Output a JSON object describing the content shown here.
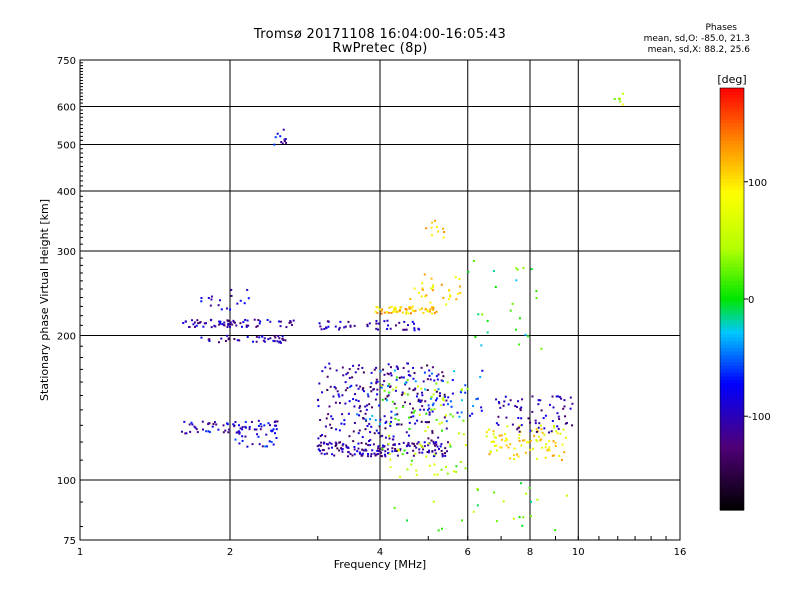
{
  "header": {
    "title_line1": "Tromsø 20171108 16:04:00-16:05:43",
    "title_line2": "RwPretec (8p)",
    "phase_heading": "Phases",
    "phase_o": "mean, sd,O: -85.0, 21.3",
    "phase_x": "mean, sd,X:  88.2, 25.6"
  },
  "chart_data": {
    "type": "scatter",
    "title": "Tromsø 20171108 16:04:00-16:05:43",
    "subtitle": "RwPretec (8p)",
    "xlabel": "Frequency [MHz]",
    "ylabel": "Stationary phase Virtual Height [km]",
    "x_scale": "log",
    "y_scale": "log",
    "xlim": [
      1,
      16
    ],
    "ylim": [
      75,
      750
    ],
    "x_ticks": [
      1,
      2,
      4,
      6,
      8,
      10,
      16
    ],
    "y_ticks": [
      75,
      100,
      200,
      300,
      400,
      500,
      600,
      750
    ],
    "grid": true,
    "colorbar": {
      "label": "[deg]",
      "range": [
        -180,
        180
      ],
      "ticks": [
        -100,
        0,
        100
      ],
      "colormap": "rainbow"
    },
    "clusters": [
      {
        "name": "O-F1-low",
        "x": [
          1.6,
          2.55
        ],
        "y": [
          125,
          133
        ],
        "n": 70,
        "phase": -95
      },
      {
        "name": "O-F1-low2",
        "x": [
          2.05,
          2.5
        ],
        "y": [
          117,
          126
        ],
        "n": 20,
        "phase": -80
      },
      {
        "name": "O-F2-low",
        "x": [
          1.6,
          2.7
        ],
        "y": [
          208,
          216
        ],
        "n": 70,
        "phase": -105
      },
      {
        "name": "O-F2-low2",
        "x": [
          1.75,
          2.6
        ],
        "y": [
          193,
          200
        ],
        "n": 40,
        "phase": -110
      },
      {
        "name": "O-F2-top",
        "x": [
          1.75,
          2.2
        ],
        "y": [
          225,
          250
        ],
        "n": 18,
        "phase": -100
      },
      {
        "name": "F1-main",
        "x": [
          3.0,
          5.5
        ],
        "y": [
          112,
          120
        ],
        "n": 160,
        "phase": -110
      },
      {
        "name": "F1-upper",
        "x": [
          3.0,
          5.5
        ],
        "y": [
          120,
          175
        ],
        "n": 220,
        "phase": -115
      },
      {
        "name": "F1-mid",
        "x": [
          3.3,
          6.5
        ],
        "y": [
          130,
          170
        ],
        "n": 80,
        "phase": -60
      },
      {
        "name": "F2-band",
        "x": [
          3.0,
          4.8
        ],
        "y": [
          205,
          215
        ],
        "n": 45,
        "phase": -105
      },
      {
        "name": "X-F2",
        "x": [
          3.9,
          5.2
        ],
        "y": [
          222,
          230
        ],
        "n": 60,
        "phase": 110
      },
      {
        "name": "X-F2-rise",
        "x": [
          4.6,
          5.8
        ],
        "y": [
          230,
          270
        ],
        "n": 30,
        "phase": 100
      },
      {
        "name": "X-F2-cusp",
        "x": [
          4.9,
          5.4
        ],
        "y": [
          320,
          350
        ],
        "n": 10,
        "phase": 110
      },
      {
        "name": "X-F1",
        "x": [
          6.5,
          9.5
        ],
        "y": [
          110,
          130
        ],
        "n": 90,
        "phase": 95
      },
      {
        "name": "mix-F1",
        "x": [
          4.0,
          6.0
        ],
        "y": [
          100,
          165
        ],
        "n": 90,
        "phase": 40
      },
      {
        "name": "O-high",
        "x": [
          6.8,
          9.8
        ],
        "y": [
          125,
          150
        ],
        "n": 70,
        "phase": -110
      },
      {
        "name": "scatter-lo",
        "x": [
          4.2,
          9.5
        ],
        "y": [
          78,
          100
        ],
        "n": 25,
        "phase": 20
      },
      {
        "name": "F-spread",
        "x": [
          6.0,
          8.5
        ],
        "y": [
          180,
          290
        ],
        "n": 25,
        "phase": 0
      },
      {
        "name": "cusp-2.5",
        "x": [
          2.45,
          2.6
        ],
        "y": [
          490,
          540
        ],
        "n": 12,
        "phase": -90
      },
      {
        "name": "high-12",
        "x": [
          11.8,
          12.4
        ],
        "y": [
          605,
          640
        ],
        "n": 7,
        "phase": 60
      }
    ]
  }
}
